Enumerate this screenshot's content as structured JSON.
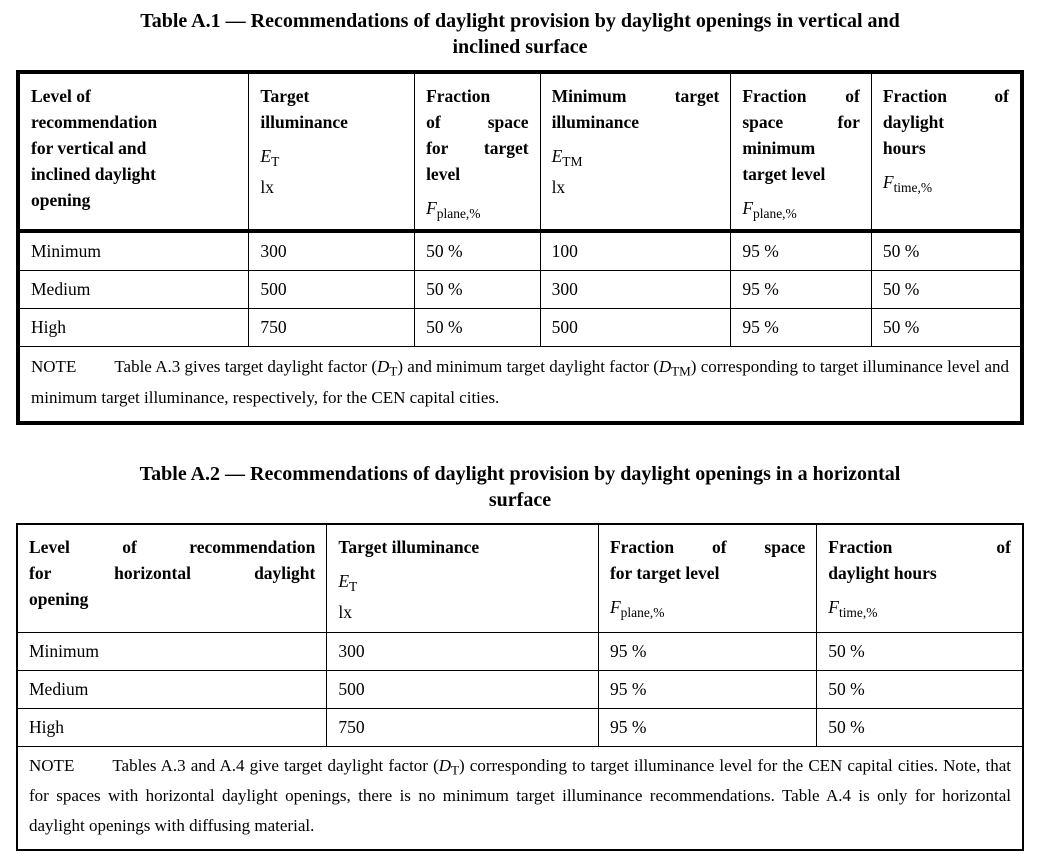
{
  "page": {
    "background": "#ffffff",
    "text_color": "#000000",
    "border_color": "#000000"
  },
  "table1": {
    "caption": "Table A.1 — Recommendations of daylight provision by daylight openings in vertical and\ninclined surface",
    "columns": [
      {
        "title": "Level of\nrecommendation\nfor vertical and\ninclined daylight\nopening",
        "sym_base": "",
        "sym_sub": "",
        "unit": ""
      },
      {
        "title": "Target\nilluminance",
        "sym_base": "E",
        "sym_sub": "T",
        "unit": "lx"
      },
      {
        "title": "Fraction\nof space\nfor target\nlevel",
        "sym_base": "F",
        "sym_sub": "plane,%",
        "unit": ""
      },
      {
        "title": "Minimum target\nilluminance",
        "sym_base": "E",
        "sym_sub": "TM",
        "unit": "lx"
      },
      {
        "title": "Fraction of\nspace for\nminimum\ntarget level",
        "sym_base": "F",
        "sym_sub": "plane,%",
        "unit": ""
      },
      {
        "title": "Fraction of\ndaylight\nhours",
        "sym_base": "F",
        "sym_sub": "time,%",
        "unit": ""
      }
    ],
    "rows": [
      [
        "Minimum",
        "300",
        "50 %",
        "100",
        "95 %",
        "50 %"
      ],
      [
        "Medium",
        "500",
        "50 %",
        "300",
        "95 %",
        "50 %"
      ],
      [
        "High",
        "750",
        "50 %",
        "500",
        "95 %",
        "50 %"
      ]
    ],
    "note": {
      "label": "NOTE",
      "p1": "Table A.3 gives target daylight factor (",
      "f1_base": "D",
      "f1_sub": "T",
      "p2": ") and minimum target daylight factor (",
      "f2_base": "D",
      "f2_sub": "TM",
      "p3": ") corresponding to target illuminance level and minimum target illuminance, respectively, for the CEN capital cities."
    }
  },
  "table2": {
    "caption": "Table A.2 — Recommendations of daylight provision by daylight openings in a horizontal\nsurface",
    "columns": [
      {
        "title": "Level of recommendation\nfor horizontal daylight\nopening",
        "sym_base": "",
        "sym_sub": "",
        "unit": ""
      },
      {
        "title": "Target illuminance",
        "sym_base": "E",
        "sym_sub": "T",
        "unit": "lx"
      },
      {
        "title": "Fraction of space\nfor target level",
        "sym_base": "F",
        "sym_sub": "plane,%",
        "unit": ""
      },
      {
        "title": "Fraction of\ndaylight hours",
        "sym_base": "F",
        "sym_sub": "time,%",
        "unit": ""
      }
    ],
    "rows": [
      [
        "Minimum",
        "300",
        "95 %",
        "50 %"
      ],
      [
        "Medium",
        "500",
        "95 %",
        "50 %"
      ],
      [
        "High",
        "750",
        "95 %",
        "50 %"
      ]
    ],
    "note": {
      "label": "NOTE",
      "p1": "Tables A.3 and A.4 give target daylight factor (",
      "f1_base": "D",
      "f1_sub": "T",
      "p2": ") corresponding to target illuminance level for the CEN capital cities. Note, that for spaces with horizontal daylight openings, there is no minimum target illuminance recommendations. Table A.4 is only for horizontal daylight openings with diffusing material."
    }
  }
}
